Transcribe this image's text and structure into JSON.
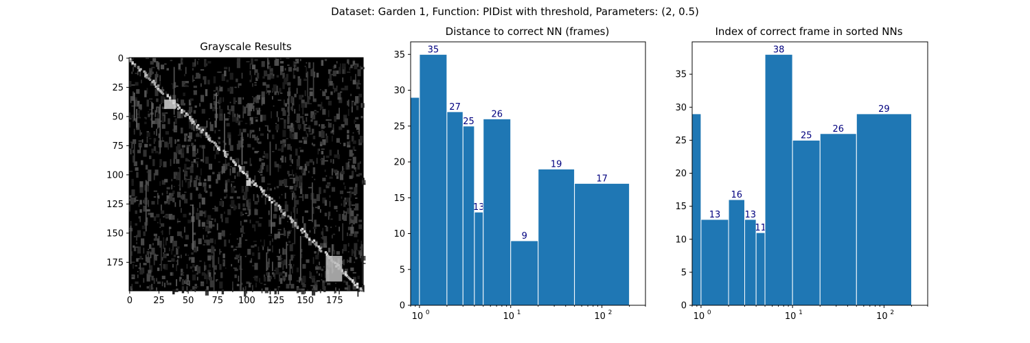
{
  "suptitle": "Dataset:  Garden 1,  Function:  PIDist with threshold, Parameters: (2, 0.5)",
  "colors": {
    "bar": "#1f77b4",
    "bar_edge": "#ffffff",
    "label": "#00007f",
    "axis": "#000000",
    "image_bg": "#000000"
  },
  "chart_data": [
    {
      "type": "heatmap",
      "title": "Grayscale Results",
      "colormap": "gray",
      "description_values": "200x200 grayscale similarity matrix, bright along the diagonal",
      "xticks": [
        0,
        25,
        50,
        75,
        100,
        125,
        150,
        175
      ],
      "yticks": [
        0,
        25,
        50,
        75,
        100,
        125,
        150,
        175
      ],
      "xlim": [
        0,
        199
      ],
      "ylim": [
        199,
        0
      ]
    },
    {
      "type": "bar",
      "title": "Distance to correct NN (frames)",
      "xscale": "log",
      "bins": [
        [
          0.5,
          1
        ],
        [
          1,
          2
        ],
        [
          2,
          3
        ],
        [
          3,
          4
        ],
        [
          4,
          5
        ],
        [
          5,
          10
        ],
        [
          10,
          20
        ],
        [
          20,
          50
        ],
        [
          50,
          200
        ]
      ],
      "values": [
        29,
        35,
        27,
        25,
        13,
        26,
        9,
        19,
        17
      ],
      "data_labels": [
        "",
        "35",
        "27",
        "25",
        "13",
        "26",
        "9",
        "19",
        "17"
      ],
      "xlim": [
        0.8,
        300
      ],
      "ylim": [
        0,
        36.75
      ],
      "yticks": [
        0,
        5,
        10,
        15,
        20,
        25,
        30,
        35
      ],
      "xticks": [
        1,
        10,
        100
      ],
      "xtick_labels": [
        "10",
        "10",
        "10"
      ],
      "xtick_exponents": [
        "0",
        "1",
        "2"
      ]
    },
    {
      "type": "bar",
      "title": "Index of correct frame in sorted NNs",
      "xscale": "log",
      "bins": [
        [
          0.5,
          1
        ],
        [
          1,
          2
        ],
        [
          2,
          3
        ],
        [
          3,
          4
        ],
        [
          4,
          5
        ],
        [
          5,
          10
        ],
        [
          10,
          20
        ],
        [
          20,
          50
        ],
        [
          50,
          200
        ]
      ],
      "values": [
        29,
        13,
        16,
        13,
        11,
        38,
        25,
        26,
        29
      ],
      "data_labels": [
        "",
        "13",
        "16",
        "13",
        "11",
        "38",
        "25",
        "26",
        "29"
      ],
      "xlim": [
        0.8,
        300
      ],
      "ylim": [
        0,
        39.9
      ],
      "yticks": [
        0,
        5,
        10,
        15,
        20,
        25,
        30,
        35
      ],
      "xticks": [
        1,
        10,
        100
      ],
      "xtick_labels": [
        "10",
        "10",
        "10"
      ],
      "xtick_exponents": [
        "0",
        "1",
        "2"
      ]
    }
  ]
}
